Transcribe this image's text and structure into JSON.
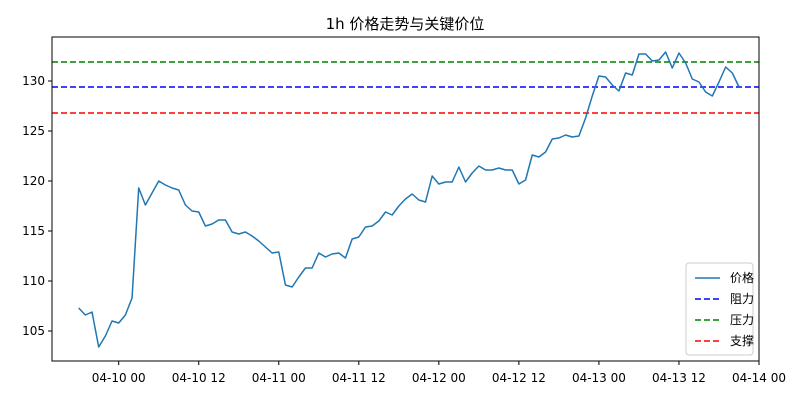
{
  "chart_data": {
    "type": "line",
    "title": "1h 价格走势与关键价位",
    "xlabel": "",
    "ylabel": "",
    "grid": false,
    "legend_position": "lower-right",
    "x_ticks": [
      "04-10 00",
      "04-10 12",
      "04-11 00",
      "04-11 12",
      "04-12 00",
      "04-12 12",
      "04-13 00",
      "04-13 12",
      "04-14 00"
    ],
    "y_ticks": [
      105,
      110,
      115,
      120,
      125,
      130
    ],
    "xlim_hours": [
      -10,
      96
    ],
    "ylim": [
      102,
      134.4
    ],
    "x_tick_interval_hours": 12,
    "x_step_hours": 1,
    "series": [
      {
        "name": "价格",
        "color": "#1f77b4",
        "style": "solid",
        "start_hour": -6,
        "values": [
          107.3,
          106.6,
          106.9,
          103.4,
          104.5,
          106.0,
          105.8,
          106.6,
          108.3,
          119.3,
          117.6,
          118.8,
          120.0,
          119.6,
          119.3,
          119.1,
          117.6,
          117.0,
          116.9,
          115.5,
          115.7,
          116.1,
          116.1,
          114.9,
          114.7,
          114.9,
          114.5,
          114.0,
          113.4,
          112.8,
          112.9,
          109.6,
          109.4,
          110.4,
          111.3,
          111.3,
          112.8,
          112.4,
          112.7,
          112.8,
          112.3,
          114.2,
          114.4,
          115.4,
          115.5,
          116.0,
          116.9,
          116.6,
          117.5,
          118.2,
          118.7,
          118.1,
          117.9,
          120.5,
          119.7,
          119.9,
          119.9,
          121.4,
          119.9,
          120.8,
          121.5,
          121.1,
          121.1,
          121.3,
          121.1,
          121.1,
          119.7,
          120.1,
          122.6,
          122.4,
          122.9,
          124.2,
          124.3,
          124.6,
          124.4,
          124.5,
          126.3,
          128.5,
          130.5,
          130.4,
          129.6,
          129.0,
          130.8,
          130.6,
          132.7,
          132.7,
          132.0,
          132.1,
          132.9,
          131.3,
          132.8,
          131.8,
          130.2,
          129.9,
          128.9,
          128.5,
          129.9,
          131.4,
          130.8,
          129.4
        ]
      }
    ],
    "hlines": [
      {
        "name": "阻力",
        "value": 129.4,
        "color": "#0000ff",
        "style": "dashed"
      },
      {
        "name": "压力",
        "value": 131.9,
        "color": "#008000",
        "style": "dashed"
      },
      {
        "name": "支撑",
        "value": 126.8,
        "color": "#ff0000",
        "style": "dashed"
      }
    ]
  }
}
